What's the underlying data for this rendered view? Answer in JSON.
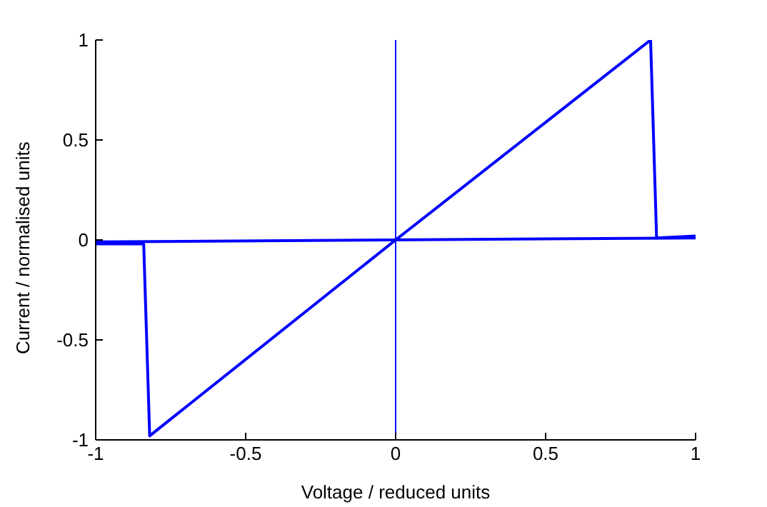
{
  "chart_data": {
    "type": "line",
    "xlabel": "Voltage / reduced units",
    "ylabel": "Current / normalised units",
    "xlim": [
      -1,
      1
    ],
    "xticks": [
      -1,
      -0.5,
      0,
      0.5,
      1
    ],
    "ylim": [
      -1,
      1
    ],
    "yticks": [
      -1,
      -0.5,
      0,
      0.5,
      1
    ],
    "grid": false,
    "legend": false,
    "series": [
      {
        "color": "#0000ff",
        "x": [
          -1,
          -0.84,
          -0.82,
          0,
          0.85,
          0.87,
          1
        ],
        "values": [
          -0.02,
          -0.02,
          -0.98,
          0,
          1,
          0.01,
          0.02
        ]
      },
      {
        "color": "#0000ff",
        "x": [
          -1,
          1
        ],
        "values": [
          -0.01,
          0.01
        ]
      }
    ],
    "ref_lines": [
      {
        "axis": "x",
        "value": 0,
        "color": "#0000ff"
      }
    ]
  }
}
